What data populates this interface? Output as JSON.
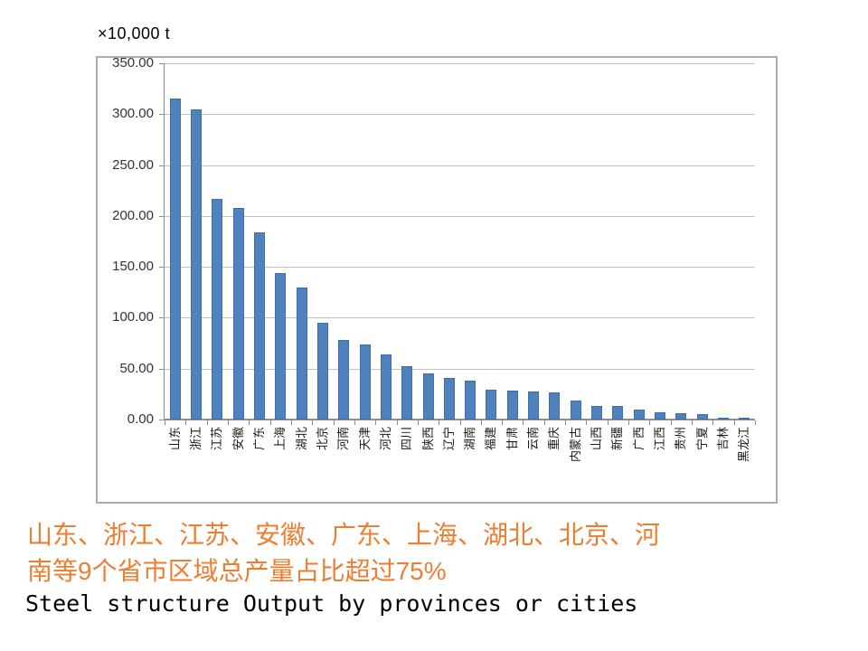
{
  "chart_data": {
    "type": "bar",
    "title": "Steel structure Output by provinces or cities",
    "unit_label": "×10,000 t",
    "categories": [
      "山东",
      "浙江",
      "江苏",
      "安徽",
      "广东",
      "上海",
      "湖北",
      "北京",
      "河南",
      "天津",
      "河北",
      "四川",
      "陕西",
      "辽宁",
      "湖南",
      "福建",
      "甘肃",
      "云南",
      "重庆",
      "内蒙古",
      "山西",
      "新疆",
      "广西",
      "江西",
      "贵州",
      "宁夏",
      "吉林",
      "黑龙江"
    ],
    "values": [
      315,
      305,
      217,
      208,
      184,
      144,
      130,
      95,
      78,
      74,
      64,
      52,
      45,
      41,
      38,
      29,
      28,
      27.5,
      26.5,
      19,
      13.5,
      13,
      10,
      7,
      6,
      5,
      2,
      1.5
    ],
    "ylim": [
      0,
      350
    ],
    "ytick_step": 50,
    "ytick_labels": [
      "0.00",
      "50.00",
      "100.00",
      "150.00",
      "200.00",
      "250.00",
      "300.00",
      "350.00"
    ],
    "grid": true,
    "legend": "none",
    "bar_color": "#4f81bd",
    "xlabel": "",
    "ylabel": ""
  },
  "caption": {
    "line1": "山东、浙江、江苏、安徽、广东、上海、湖北、北京、河",
    "line2": "南等9个省市区域总产量占比超过75%",
    "color": "#ED7D31"
  }
}
